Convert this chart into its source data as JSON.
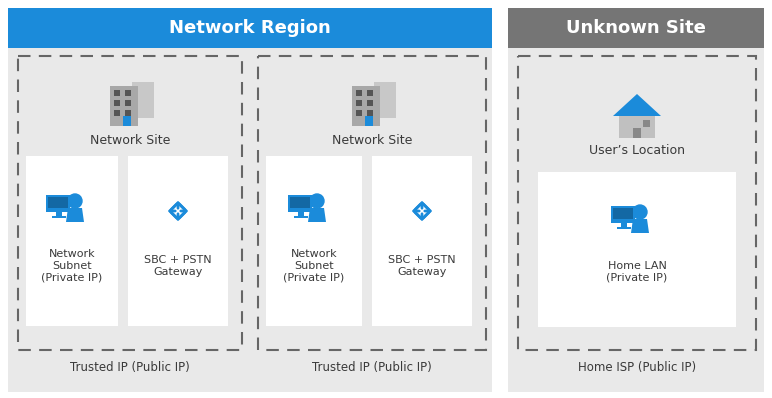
{
  "bg_color": "#ffffff",
  "network_region_header_color": "#1b8bda",
  "unknown_site_header_color": "#757575",
  "header_text_color": "#ffffff",
  "panel_bg": "#e9e9e9",
  "dashed_border_color": "#666666",
  "text_color": "#3a3a3a",
  "blue_color": "#1b8bda",
  "network_region_title": "Network Region",
  "unknown_site_title": "Unknown Site",
  "site1_label": "Network Site",
  "site2_label": "Network Site",
  "subnet1_label": "Network\nSubnet\n(Private IP)",
  "sbc1_label": "SBC + PSTN\nGateway",
  "subnet2_label": "Network\nSubnet\n(Private IP)",
  "sbc2_label": "SBC + PSTN\nGateway",
  "users_location_label": "User’s Location",
  "home_lan_label": "Home LAN\n(Private IP)",
  "trusted1_label": "Trusted IP (Public IP)",
  "trusted2_label": "Trusted IP (Public IP)",
  "home_isp_label": "Home ISP (Public IP)"
}
